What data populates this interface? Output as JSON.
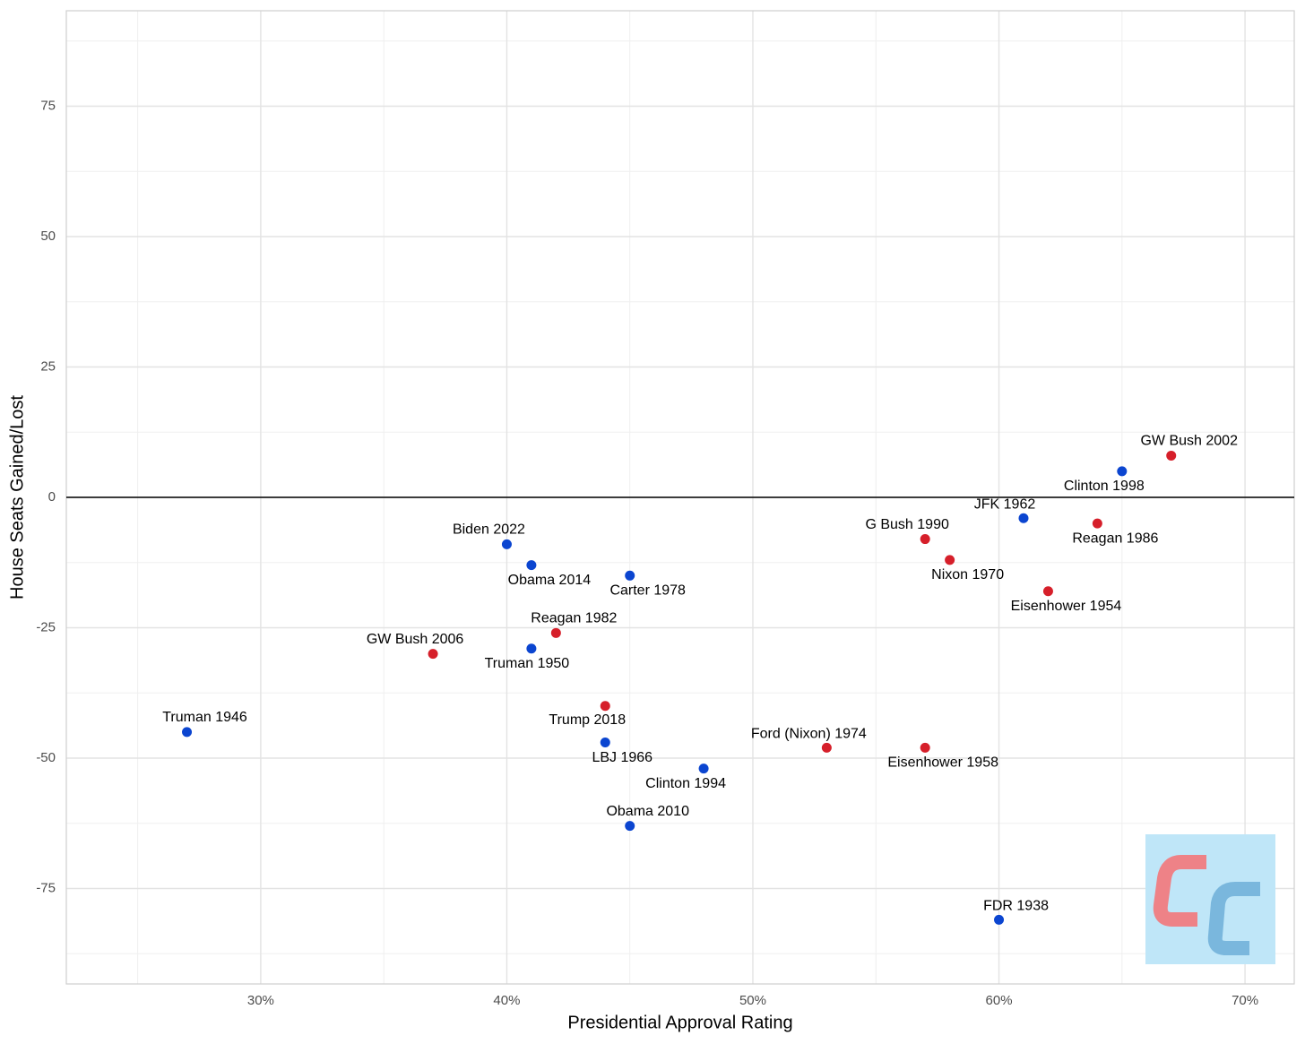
{
  "chart_data": {
    "type": "scatter",
    "x_label": "Presidential Approval Rating",
    "y_label": "House Seats Gained/Lost",
    "xlim": [
      22.1,
      72.0
    ],
    "ylim": [
      -93.3,
      93.3
    ],
    "xticks": [
      {
        "value": 30,
        "label": "30%"
      },
      {
        "value": 40,
        "label": "40%"
      },
      {
        "value": 50,
        "label": "50%"
      },
      {
        "value": 60,
        "label": "60%"
      },
      {
        "value": 70,
        "label": "70%"
      }
    ],
    "yticks": [
      -75,
      -50,
      -25,
      0,
      25,
      50,
      75
    ],
    "grid": true,
    "hline": 0,
    "series": [
      {
        "color": "#0b45d0",
        "x": [
          27,
          40,
          41,
          45,
          41,
          44,
          48,
          45,
          60,
          61,
          65
        ],
        "values": [
          -45,
          -9,
          -13,
          -15,
          -29,
          -47,
          -52,
          -63,
          -81,
          -4,
          5
        ],
        "labels": [
          "Truman 1946",
          "Biden 2022",
          "Obama 2014",
          "Carter 1978",
          "Truman 1950",
          "LBJ 1966",
          "Clinton 1994",
          "Obama 2010",
          "FDR 1938",
          "JFK 1962",
          "Clinton 1998"
        ]
      },
      {
        "color": "#d61f2a",
        "x": [
          37,
          42,
          44,
          53,
          57,
          57,
          58,
          62,
          64,
          67
        ],
        "values": [
          -30,
          -26,
          -40,
          -48,
          -48,
          -8,
          -12,
          -18,
          -5,
          8
        ],
        "labels": [
          "GW Bush 2006",
          "Reagan 1982",
          "Trump 2018",
          "Ford (Nixon) 1974",
          "Eisenhower 1958",
          "G Bush 1990",
          "Nixon 1970",
          "Eisenhower 1954",
          "Reagan 1986",
          "GW Bush 2002"
        ]
      }
    ]
  }
}
